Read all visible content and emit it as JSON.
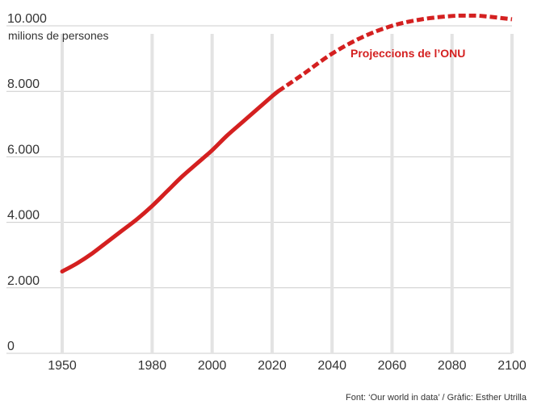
{
  "chart_data": {
    "type": "line",
    "ylabel": "milions de persones",
    "ylim": [
      0,
      10000
    ],
    "xlim": [
      1950,
      2100
    ],
    "grid": true,
    "y_ticks": [
      0,
      2000,
      4000,
      6000,
      8000,
      10000
    ],
    "y_tick_labels": [
      "0",
      "2.000",
      "4.000",
      "6.000",
      "8.000",
      "10.000"
    ],
    "x_ticks": [
      1950,
      1980,
      2000,
      2020,
      2040,
      2060,
      2080,
      2100
    ],
    "x_tick_labels": [
      "1950",
      "1980",
      "2000",
      "2020",
      "2040",
      "2060",
      "2080",
      "2100"
    ],
    "series": [
      {
        "style": "solid",
        "color": "#d42020",
        "x": [
          1950,
          1955,
          1960,
          1965,
          1970,
          1975,
          1980,
          1985,
          1990,
          1995,
          2000,
          2005,
          2010,
          2015,
          2020,
          2022
        ],
        "values": [
          2500,
          2750,
          3050,
          3400,
          3750,
          4100,
          4500,
          4950,
          5400,
          5800,
          6200,
          6650,
          7050,
          7450,
          7850,
          8000
        ]
      },
      {
        "name": "Projeccions de l’ONU",
        "style": "dashed",
        "color": "#d42020",
        "x": [
          2022,
          2030,
          2040,
          2050,
          2060,
          2070,
          2080,
          2086,
          2090,
          2100
        ],
        "values": [
          8000,
          8500,
          9150,
          9650,
          10000,
          10200,
          10300,
          10310,
          10300,
          10200
        ]
      }
    ],
    "annotation": "Projeccions de l’ONU",
    "source": "Font: ‘Our world in data’ / Gràfic: Esther Utrilla",
    "colors": {
      "line": "#d42020",
      "grid": "#cccccc",
      "text": "#333333"
    }
  }
}
